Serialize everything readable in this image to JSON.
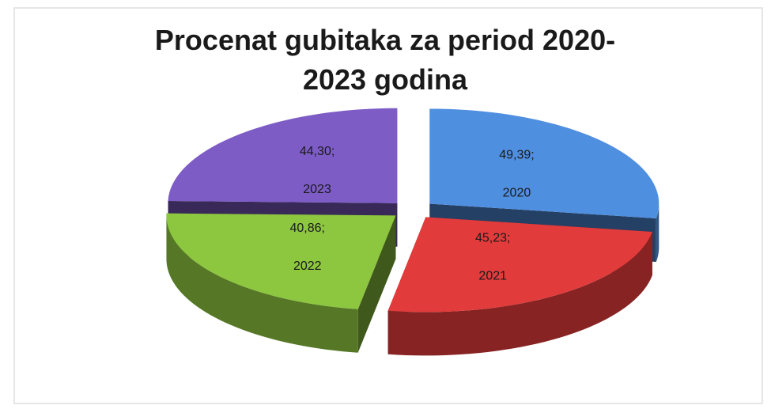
{
  "chart_data": {
    "type": "pie",
    "title": "Procenat gubitaka za period 2020-2023 godina",
    "categories": [
      "2020",
      "2021",
      "2022",
      "2023"
    ],
    "values": [
      49.39,
      45.23,
      40.86,
      44.3
    ],
    "value_labels": [
      "49,39;",
      "45,23;",
      "40,86;",
      "44,30;"
    ],
    "colors": [
      "#4f8fe0",
      "#e23b3b",
      "#8dc63f",
      "#7d5cc6"
    ]
  }
}
